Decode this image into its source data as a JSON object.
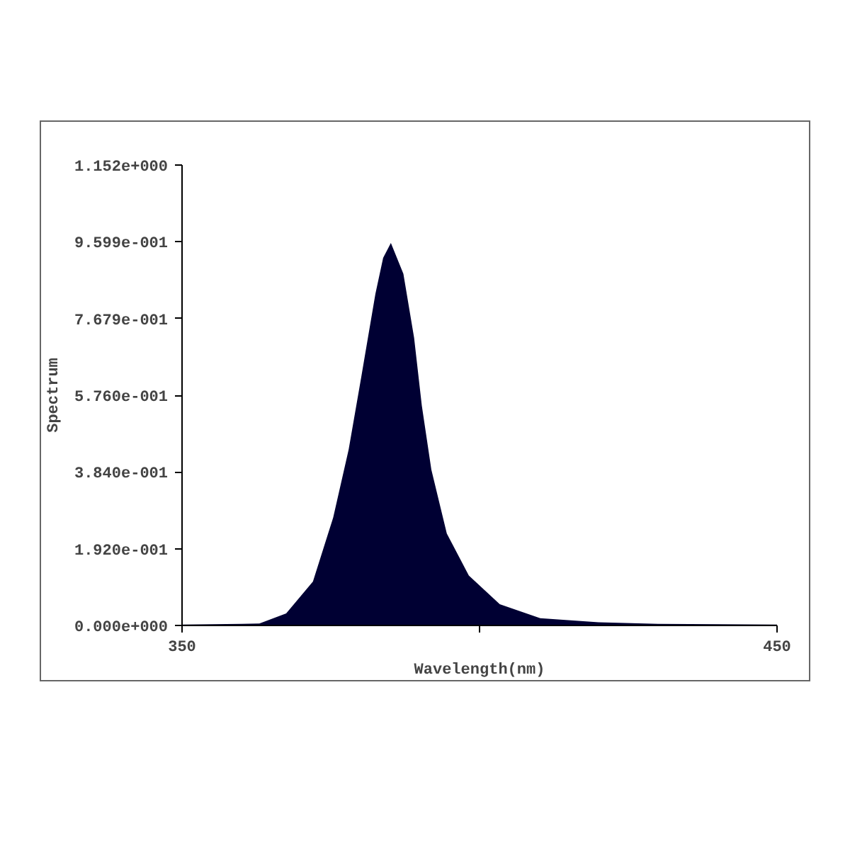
{
  "chart_data": {
    "type": "area",
    "xlabel": "Wavelength(nm)",
    "ylabel": "Spectrum",
    "x": [
      350,
      360,
      363,
      367.5,
      372,
      375.4,
      378,
      380.1,
      382.5,
      383.8,
      385.1,
      387.2,
      389,
      390.3,
      391.9,
      394.5,
      398.2,
      403.4,
      410.2,
      420,
      430,
      450
    ],
    "series": [
      {
        "color": "#000033",
        "values": [
          0.002,
          0.004,
          0.005,
          0.03,
          0.11,
          0.27,
          0.44,
          0.62,
          0.83,
          0.92,
          0.957,
          0.88,
          0.72,
          0.55,
          0.39,
          0.23,
          0.125,
          0.053,
          0.018,
          0.008,
          0.004,
          0.002
        ]
      }
    ],
    "xlim": [
      350,
      450
    ],
    "xticks": [
      350,
      {
        "value": 400,
        "label": null
      },
      450
    ],
    "ylim": [
      0,
      1.152
    ],
    "yticks": [
      {
        "value": 0,
        "label": "0.000e+000"
      },
      {
        "value": 0.192,
        "label": "1.920e-001"
      },
      {
        "value": 0.384,
        "label": "3.840e-001"
      },
      {
        "value": 0.576,
        "label": "5.760e-001"
      },
      {
        "value": 0.7679,
        "label": "7.679e-001"
      },
      {
        "value": 0.9599,
        "label": "9.599e-001"
      },
      {
        "value": 1.152,
        "label": "1.152e+000"
      }
    ],
    "grid": false
  }
}
